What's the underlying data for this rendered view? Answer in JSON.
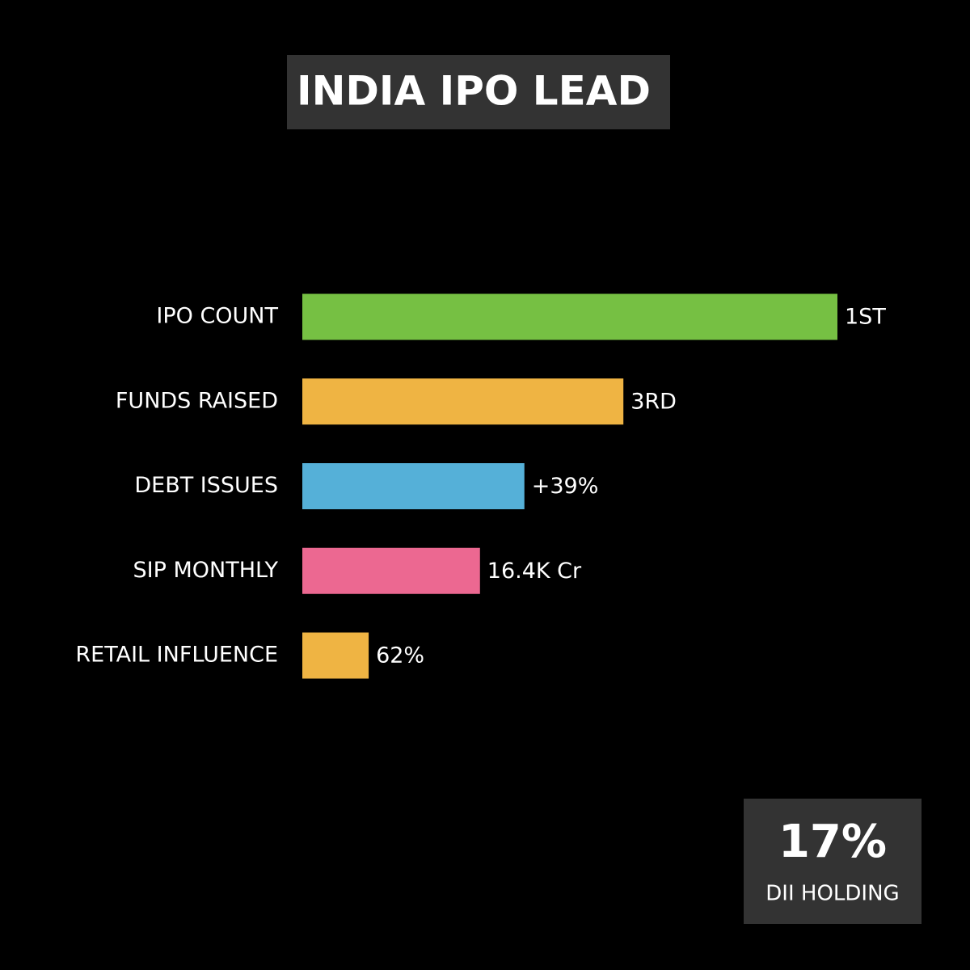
{
  "chart_data": {
    "type": "hbar",
    "title": "INDIA IPO LEAD",
    "categories": [
      "IPO COUNT",
      "FUNDS RAISED",
      "DEBT ISSUES",
      "SIP MONTHLY",
      "RETAIL INFLUENCE"
    ],
    "values": [
      100,
      60,
      41.5,
      33.2,
      12.4
    ],
    "bar_texts": [
      "1ST",
      "3RD",
      "+39%",
      "16.4K Cr",
      "62%"
    ],
    "colors": [
      "#76c043",
      "#efb443",
      "#55b0d8",
      "#ec6891",
      "#efb443"
    ],
    "xlim": [
      0,
      100
    ],
    "callout": {
      "headline": "17%",
      "caption": "DII HOLDING"
    }
  }
}
